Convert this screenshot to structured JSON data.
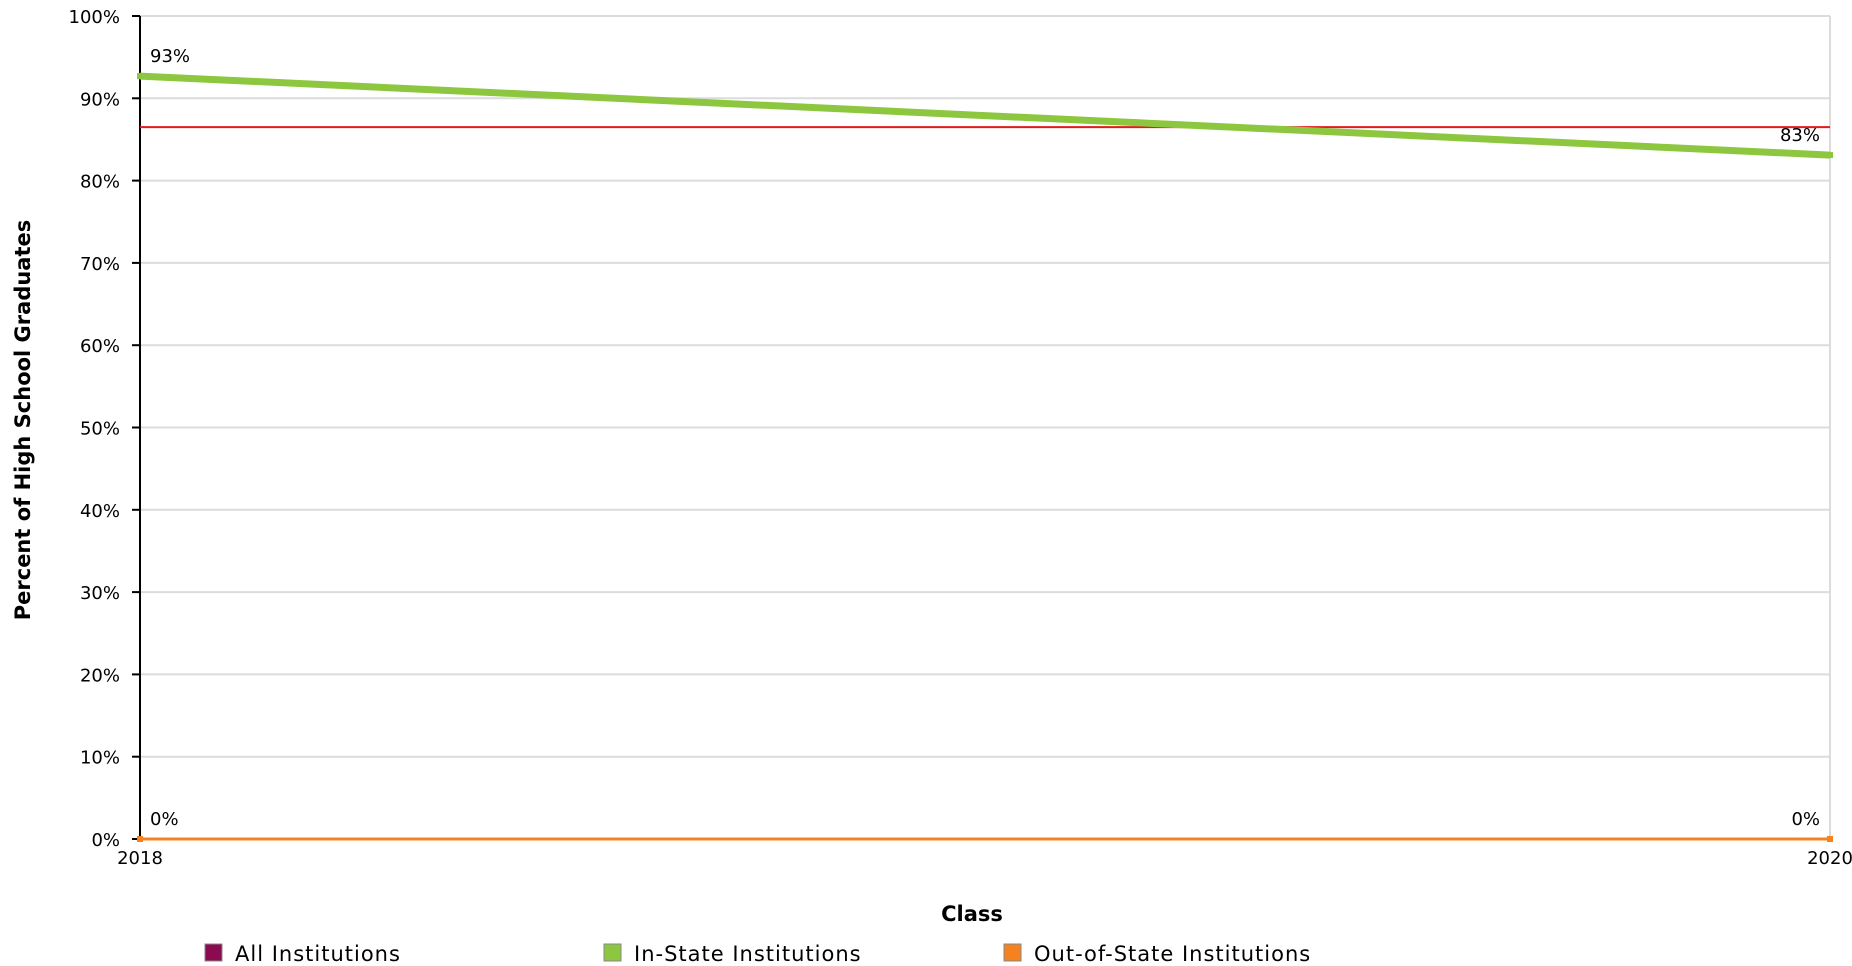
{
  "chart_data": {
    "type": "line",
    "xlabel": "Class",
    "ylabel": "Percent of High School Graduates",
    "x": [
      "2018",
      "2020"
    ],
    "ylim": [
      0,
      100
    ],
    "yticks": [
      "0%",
      "10%",
      "20%",
      "30%",
      "40%",
      "50%",
      "60%",
      "70%",
      "80%",
      "90%",
      "100%"
    ],
    "grid": true,
    "legend_position": "bottom",
    "series": [
      {
        "name": "All Institutions",
        "color": "#8b0a50",
        "values": [
          0,
          0
        ],
        "labels": []
      },
      {
        "name": "In-State Institutions",
        "color": "#8dc63f",
        "values": [
          92.7,
          83.1
        ],
        "labels": [
          "93%",
          "83%"
        ]
      },
      {
        "name": "Out-of-State Institutions",
        "color": "#f5821f",
        "values": [
          0,
          0
        ],
        "labels": [
          "0%",
          "0%"
        ]
      }
    ],
    "reference_line": {
      "value": 86.5,
      "color": "#e31a1c"
    }
  }
}
